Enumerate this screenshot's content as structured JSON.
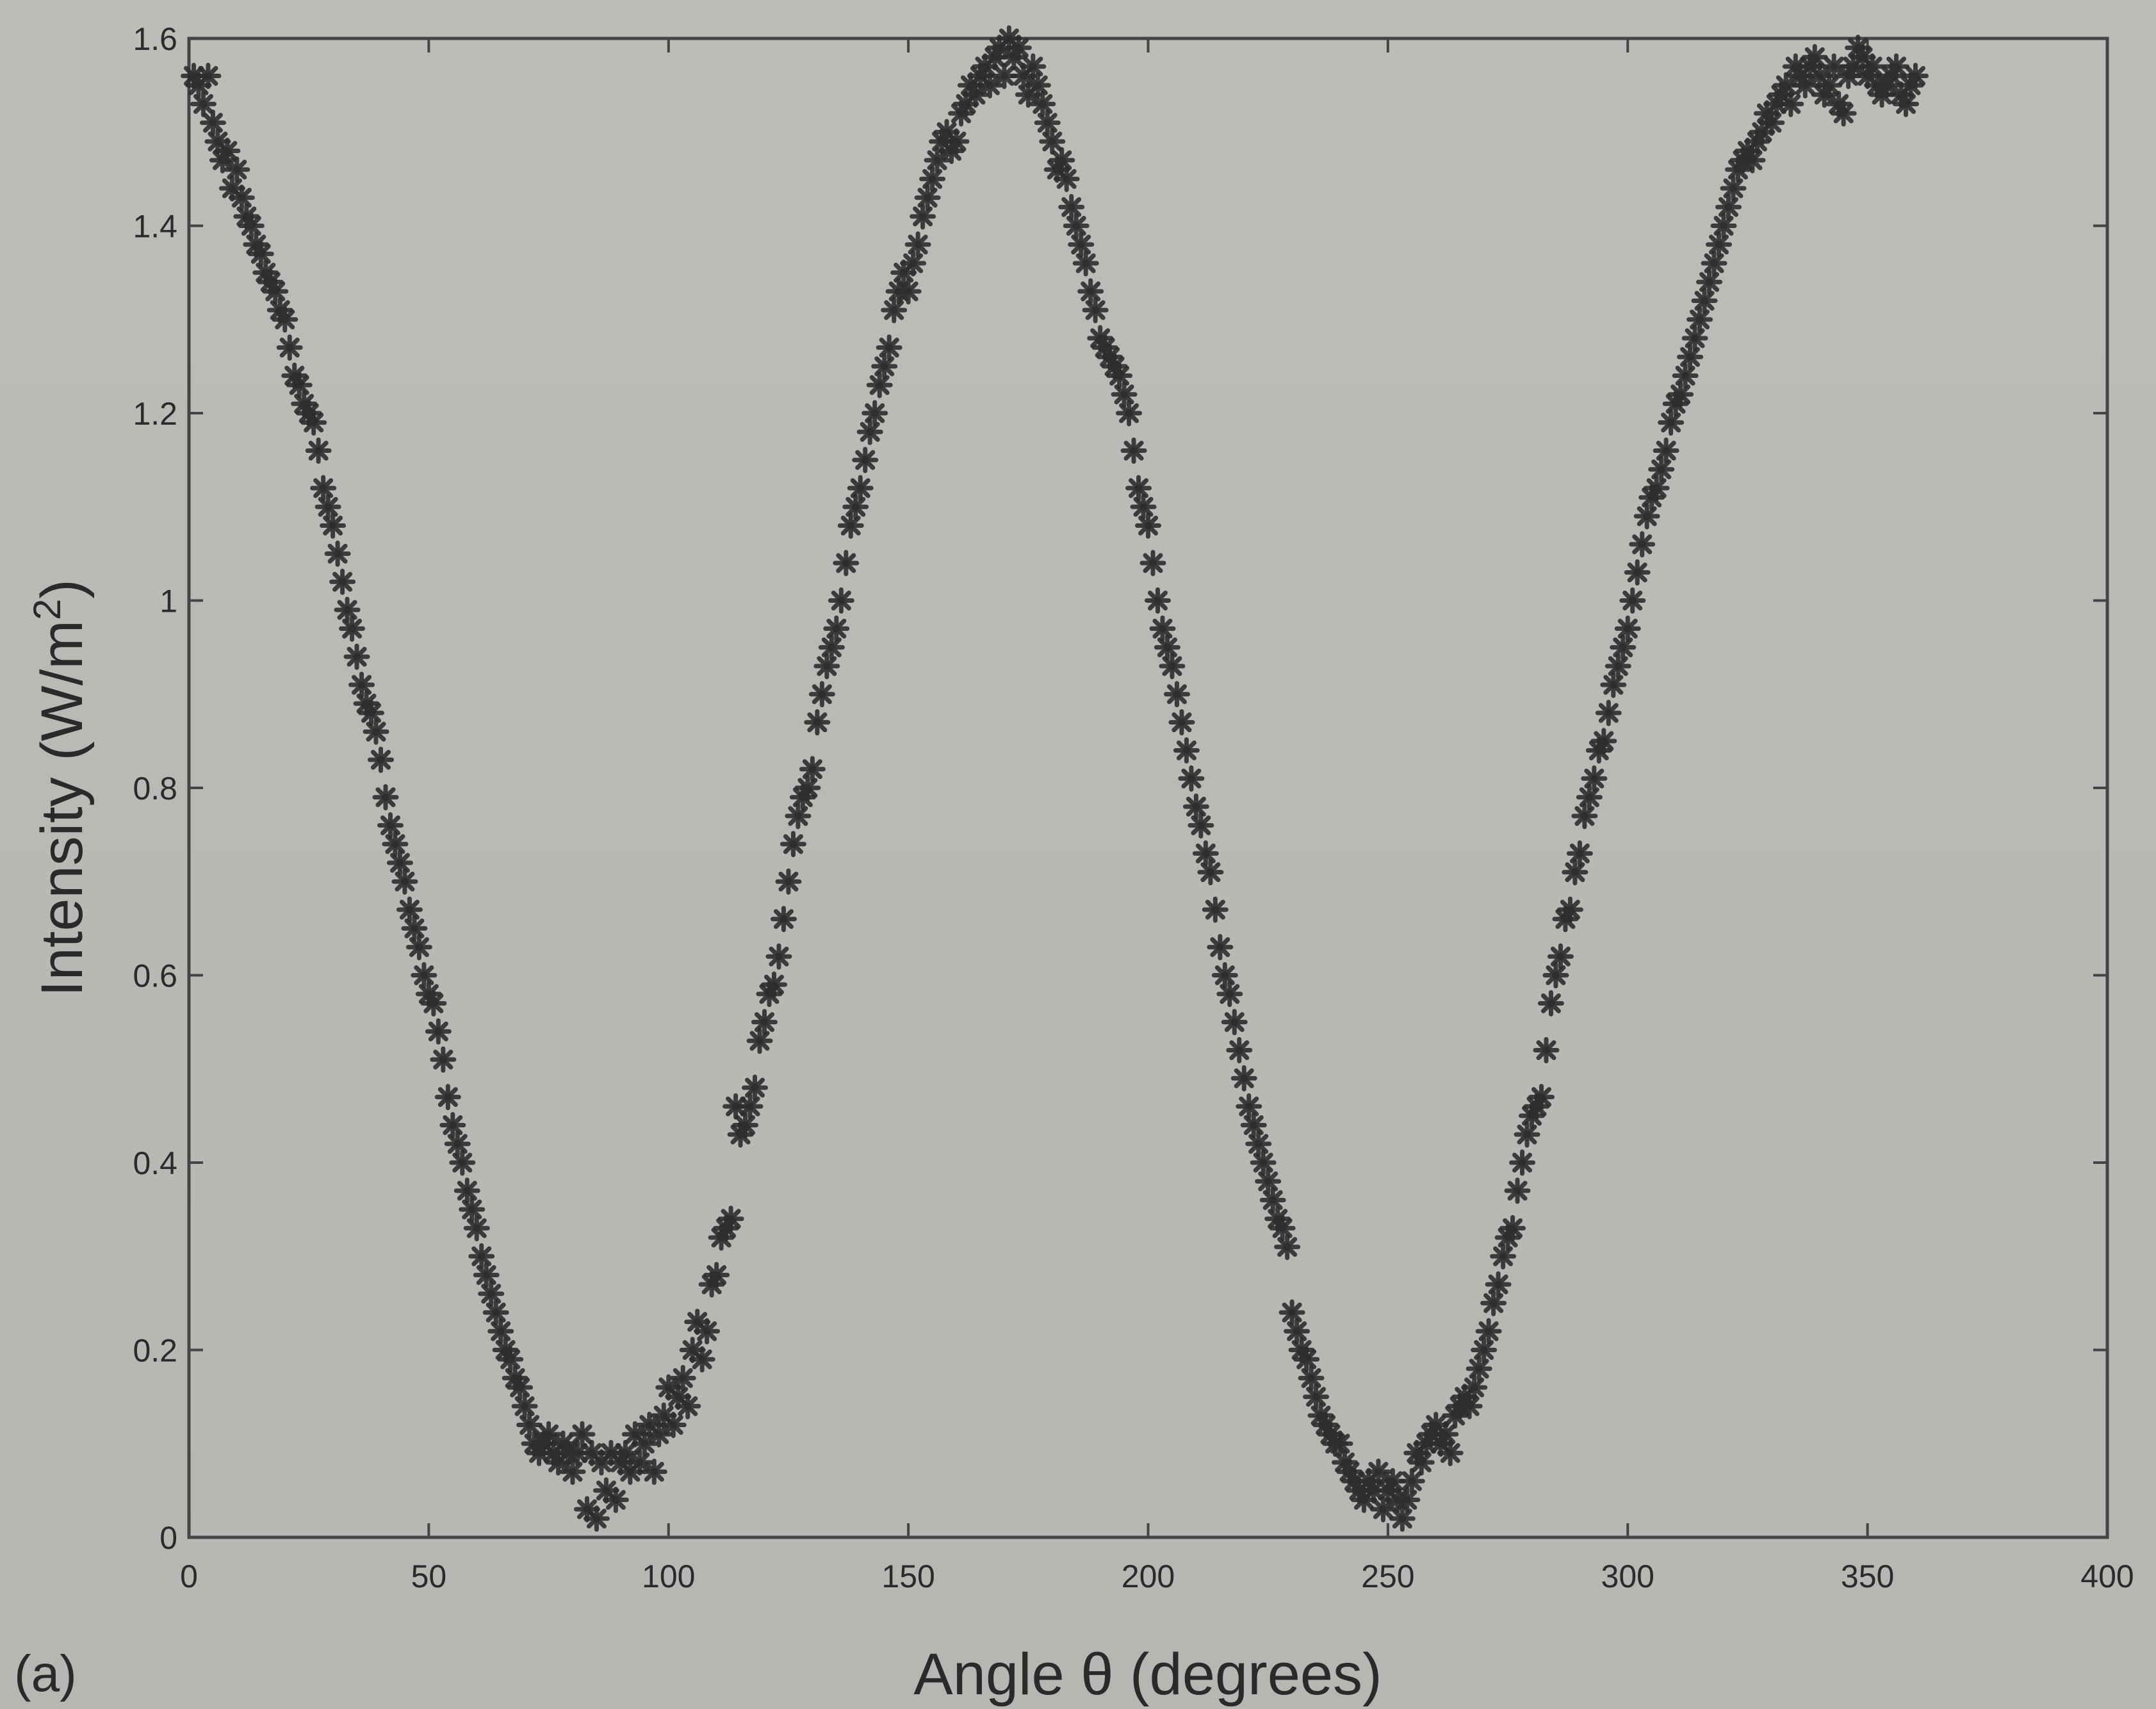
{
  "chart_data": {
    "type": "scatter",
    "xlabel": "Angle θ (degrees)",
    "ylabel_main": "Intensity (W/m",
    "ylabel_sup": "2",
    "ylabel_close": ")",
    "panel_label": "(a)",
    "xlim": [
      0,
      400
    ],
    "ylim": [
      0,
      1.6
    ],
    "xticks": [
      0,
      50,
      100,
      150,
      200,
      250,
      300,
      350,
      400
    ],
    "xtick_labels": [
      "0",
      "50",
      "100",
      "150",
      "200",
      "250",
      "300",
      "350",
      "400"
    ],
    "yticks": [
      0,
      0.2,
      0.4,
      0.6,
      0.8,
      1.0,
      1.2,
      1.4,
      1.6
    ],
    "ytick_labels": [
      "0",
      "0.2",
      "0.4",
      "0.6",
      "0.8",
      "1",
      "1.2",
      "1.4",
      "1.6"
    ],
    "grid": false,
    "marker": "asterisk",
    "marker_color": "#2e2e2e",
    "axes_color": "#444444",
    "points": [
      [
        1,
        1.56
      ],
      [
        2,
        1.55
      ],
      [
        3,
        1.53
      ],
      [
        4,
        1.56
      ],
      [
        5,
        1.51
      ],
      [
        6,
        1.49
      ],
      [
        7,
        1.47
      ],
      [
        8,
        1.48
      ],
      [
        9,
        1.44
      ],
      [
        10,
        1.46
      ],
      [
        11,
        1.43
      ],
      [
        12,
        1.41
      ],
      [
        13,
        1.4
      ],
      [
        14,
        1.38
      ],
      [
        15,
        1.37
      ],
      [
        16,
        1.35
      ],
      [
        17,
        1.34
      ],
      [
        18,
        1.33
      ],
      [
        19,
        1.31
      ],
      [
        20,
        1.3
      ],
      [
        21,
        1.27
      ],
      [
        22,
        1.24
      ],
      [
        23,
        1.23
      ],
      [
        24,
        1.21
      ],
      [
        25,
        1.2
      ],
      [
        26,
        1.19
      ],
      [
        27,
        1.16
      ],
      [
        28,
        1.12
      ],
      [
        29,
        1.1
      ],
      [
        30,
        1.08
      ],
      [
        31,
        1.05
      ],
      [
        32,
        1.02
      ],
      [
        33,
        0.99
      ],
      [
        34,
        0.97
      ],
      [
        35,
        0.94
      ],
      [
        36,
        0.91
      ],
      [
        37,
        0.89
      ],
      [
        38,
        0.88
      ],
      [
        39,
        0.86
      ],
      [
        40,
        0.83
      ],
      [
        41,
        0.79
      ],
      [
        42,
        0.76
      ],
      [
        43,
        0.74
      ],
      [
        44,
        0.72
      ],
      [
        45,
        0.7
      ],
      [
        46,
        0.67
      ],
      [
        47,
        0.65
      ],
      [
        48,
        0.63
      ],
      [
        49,
        0.6
      ],
      [
        50,
        0.58
      ],
      [
        51,
        0.57
      ],
      [
        52,
        0.54
      ],
      [
        53,
        0.51
      ],
      [
        54,
        0.47
      ],
      [
        55,
        0.44
      ],
      [
        56,
        0.42
      ],
      [
        57,
        0.4
      ],
      [
        58,
        0.37
      ],
      [
        59,
        0.35
      ],
      [
        60,
        0.33
      ],
      [
        61,
        0.3
      ],
      [
        62,
        0.28
      ],
      [
        63,
        0.26
      ],
      [
        64,
        0.24
      ],
      [
        65,
        0.22
      ],
      [
        66,
        0.2
      ],
      [
        67,
        0.19
      ],
      [
        68,
        0.17
      ],
      [
        69,
        0.16
      ],
      [
        70,
        0.14
      ],
      [
        71,
        0.12
      ],
      [
        72,
        0.1
      ],
      [
        73,
        0.09
      ],
      [
        74,
        0.1
      ],
      [
        75,
        0.11
      ],
      [
        76,
        0.09
      ],
      [
        77,
        0.08
      ],
      [
        78,
        0.1
      ],
      [
        79,
        0.09
      ],
      [
        80,
        0.07
      ],
      [
        81,
        0.09
      ],
      [
        82,
        0.11
      ],
      [
        83,
        0.03
      ],
      [
        84,
        0.09
      ],
      [
        85,
        0.02
      ],
      [
        86,
        0.08
      ],
      [
        87,
        0.05
      ],
      [
        88,
        0.09
      ],
      [
        89,
        0.04
      ],
      [
        90,
        0.08
      ],
      [
        91,
        0.09
      ],
      [
        92,
        0.07
      ],
      [
        93,
        0.11
      ],
      [
        94,
        0.08
      ],
      [
        95,
        0.1
      ],
      [
        96,
        0.12
      ],
      [
        97,
        0.07
      ],
      [
        98,
        0.11
      ],
      [
        99,
        0.13
      ],
      [
        100,
        0.16
      ],
      [
        101,
        0.12
      ],
      [
        102,
        0.15
      ],
      [
        103,
        0.17
      ],
      [
        104,
        0.14
      ],
      [
        105,
        0.2
      ],
      [
        106,
        0.23
      ],
      [
        107,
        0.19
      ],
      [
        108,
        0.22
      ],
      [
        109,
        0.27
      ],
      [
        110,
        0.28
      ],
      [
        111,
        0.32
      ],
      [
        112,
        0.33
      ],
      [
        113,
        0.34
      ],
      [
        114,
        0.46
      ],
      [
        115,
        0.43
      ],
      [
        116,
        0.44
      ],
      [
        117,
        0.46
      ],
      [
        118,
        0.48
      ],
      [
        119,
        0.53
      ],
      [
        120,
        0.55
      ],
      [
        121,
        0.58
      ],
      [
        122,
        0.59
      ],
      [
        123,
        0.62
      ],
      [
        124,
        0.66
      ],
      [
        125,
        0.7
      ],
      [
        126,
        0.74
      ],
      [
        127,
        0.77
      ],
      [
        128,
        0.79
      ],
      [
        129,
        0.8
      ],
      [
        130,
        0.82
      ],
      [
        131,
        0.87
      ],
      [
        132,
        0.9
      ],
      [
        133,
        0.93
      ],
      [
        134,
        0.95
      ],
      [
        135,
        0.97
      ],
      [
        136,
        1.0
      ],
      [
        137,
        1.04
      ],
      [
        138,
        1.08
      ],
      [
        139,
        1.1
      ],
      [
        140,
        1.12
      ],
      [
        141,
        1.15
      ],
      [
        142,
        1.18
      ],
      [
        143,
        1.2
      ],
      [
        144,
        1.23
      ],
      [
        145,
        1.25
      ],
      [
        146,
        1.27
      ],
      [
        147,
        1.31
      ],
      [
        148,
        1.33
      ],
      [
        149,
        1.35
      ],
      [
        150,
        1.33
      ],
      [
        151,
        1.36
      ],
      [
        152,
        1.38
      ],
      [
        153,
        1.41
      ],
      [
        154,
        1.43
      ],
      [
        155,
        1.45
      ],
      [
        156,
        1.47
      ],
      [
        157,
        1.49
      ],
      [
        158,
        1.5
      ],
      [
        159,
        1.48
      ],
      [
        160,
        1.49
      ],
      [
        161,
        1.52
      ],
      [
        162,
        1.53
      ],
      [
        163,
        1.55
      ],
      [
        164,
        1.54
      ],
      [
        165,
        1.56
      ],
      [
        166,
        1.57
      ],
      [
        167,
        1.55
      ],
      [
        168,
        1.58
      ],
      [
        169,
        1.59
      ],
      [
        170,
        1.56
      ],
      [
        171,
        1.6
      ],
      [
        172,
        1.58
      ],
      [
        173,
        1.59
      ],
      [
        174,
        1.56
      ],
      [
        175,
        1.54
      ],
      [
        176,
        1.57
      ],
      [
        177,
        1.55
      ],
      [
        178,
        1.53
      ],
      [
        179,
        1.51
      ],
      [
        180,
        1.49
      ],
      [
        181,
        1.46
      ],
      [
        182,
        1.47
      ],
      [
        183,
        1.45
      ],
      [
        184,
        1.42
      ],
      [
        185,
        1.4
      ],
      [
        186,
        1.38
      ],
      [
        187,
        1.36
      ],
      [
        188,
        1.33
      ],
      [
        189,
        1.31
      ],
      [
        190,
        1.28
      ],
      [
        191,
        1.27
      ],
      [
        192,
        1.26
      ],
      [
        193,
        1.25
      ],
      [
        194,
        1.24
      ],
      [
        195,
        1.22
      ],
      [
        196,
        1.2
      ],
      [
        197,
        1.16
      ],
      [
        198,
        1.12
      ],
      [
        199,
        1.1
      ],
      [
        200,
        1.08
      ],
      [
        201,
        1.04
      ],
      [
        202,
        1.0
      ],
      [
        203,
        0.97
      ],
      [
        204,
        0.95
      ],
      [
        205,
        0.93
      ],
      [
        206,
        0.9
      ],
      [
        207,
        0.87
      ],
      [
        208,
        0.84
      ],
      [
        209,
        0.81
      ],
      [
        210,
        0.78
      ],
      [
        211,
        0.76
      ],
      [
        212,
        0.73
      ],
      [
        213,
        0.71
      ],
      [
        214,
        0.67
      ],
      [
        215,
        0.63
      ],
      [
        216,
        0.6
      ],
      [
        217,
        0.58
      ],
      [
        218,
        0.55
      ],
      [
        219,
        0.52
      ],
      [
        220,
        0.49
      ],
      [
        221,
        0.46
      ],
      [
        222,
        0.44
      ],
      [
        223,
        0.42
      ],
      [
        224,
        0.4
      ],
      [
        225,
        0.38
      ],
      [
        226,
        0.36
      ],
      [
        227,
        0.34
      ],
      [
        228,
        0.33
      ],
      [
        229,
        0.31
      ],
      [
        230,
        0.24
      ],
      [
        231,
        0.22
      ],
      [
        232,
        0.2
      ],
      [
        233,
        0.19
      ],
      [
        234,
        0.17
      ],
      [
        235,
        0.15
      ],
      [
        236,
        0.13
      ],
      [
        237,
        0.12
      ],
      [
        238,
        0.11
      ],
      [
        239,
        0.1
      ],
      [
        240,
        0.1
      ],
      [
        241,
        0.08
      ],
      [
        242,
        0.07
      ],
      [
        243,
        0.06
      ],
      [
        244,
        0.05
      ],
      [
        245,
        0.04
      ],
      [
        246,
        0.06
      ],
      [
        247,
        0.05
      ],
      [
        248,
        0.07
      ],
      [
        249,
        0.03
      ],
      [
        250,
        0.05
      ],
      [
        251,
        0.06
      ],
      [
        252,
        0.04
      ],
      [
        253,
        0.02
      ],
      [
        254,
        0.04
      ],
      [
        255,
        0.06
      ],
      [
        256,
        0.09
      ],
      [
        257,
        0.08
      ],
      [
        258,
        0.1
      ],
      [
        259,
        0.11
      ],
      [
        260,
        0.12
      ],
      [
        261,
        0.1
      ],
      [
        262,
        0.11
      ],
      [
        263,
        0.09
      ],
      [
        264,
        0.13
      ],
      [
        265,
        0.14
      ],
      [
        266,
        0.15
      ],
      [
        267,
        0.14
      ],
      [
        268,
        0.16
      ],
      [
        269,
        0.18
      ],
      [
        270,
        0.2
      ],
      [
        271,
        0.22
      ],
      [
        272,
        0.25
      ],
      [
        273,
        0.27
      ],
      [
        274,
        0.3
      ],
      [
        275,
        0.32
      ],
      [
        276,
        0.33
      ],
      [
        277,
        0.37
      ],
      [
        278,
        0.4
      ],
      [
        279,
        0.43
      ],
      [
        280,
        0.45
      ],
      [
        281,
        0.46
      ],
      [
        282,
        0.47
      ],
      [
        283,
        0.52
      ],
      [
        284,
        0.57
      ],
      [
        285,
        0.6
      ],
      [
        286,
        0.62
      ],
      [
        287,
        0.66
      ],
      [
        288,
        0.67
      ],
      [
        289,
        0.71
      ],
      [
        290,
        0.73
      ],
      [
        291,
        0.77
      ],
      [
        292,
        0.79
      ],
      [
        293,
        0.81
      ],
      [
        294,
        0.84
      ],
      [
        295,
        0.85
      ],
      [
        296,
        0.88
      ],
      [
        297,
        0.91
      ],
      [
        298,
        0.93
      ],
      [
        299,
        0.95
      ],
      [
        300,
        0.97
      ],
      [
        301,
        1.0
      ],
      [
        302,
        1.03
      ],
      [
        303,
        1.06
      ],
      [
        304,
        1.09
      ],
      [
        305,
        1.11
      ],
      [
        306,
        1.12
      ],
      [
        307,
        1.14
      ],
      [
        308,
        1.16
      ],
      [
        309,
        1.19
      ],
      [
        310,
        1.21
      ],
      [
        311,
        1.22
      ],
      [
        312,
        1.24
      ],
      [
        313,
        1.26
      ],
      [
        314,
        1.28
      ],
      [
        315,
        1.3
      ],
      [
        316,
        1.32
      ],
      [
        317,
        1.34
      ],
      [
        318,
        1.36
      ],
      [
        319,
        1.38
      ],
      [
        320,
        1.4
      ],
      [
        321,
        1.42
      ],
      [
        322,
        1.44
      ],
      [
        323,
        1.46
      ],
      [
        324,
        1.47
      ],
      [
        325,
        1.48
      ],
      [
        326,
        1.47
      ],
      [
        327,
        1.49
      ],
      [
        328,
        1.5
      ],
      [
        329,
        1.52
      ],
      [
        330,
        1.51
      ],
      [
        331,
        1.53
      ],
      [
        332,
        1.54
      ],
      [
        333,
        1.55
      ],
      [
        334,
        1.53
      ],
      [
        335,
        1.57
      ],
      [
        336,
        1.56
      ],
      [
        337,
        1.55
      ],
      [
        338,
        1.57
      ],
      [
        339,
        1.58
      ],
      [
        340,
        1.56
      ],
      [
        341,
        1.54
      ],
      [
        342,
        1.55
      ],
      [
        343,
        1.57
      ],
      [
        344,
        1.53
      ],
      [
        345,
        1.52
      ],
      [
        346,
        1.56
      ],
      [
        347,
        1.57
      ],
      [
        348,
        1.59
      ],
      [
        349,
        1.58
      ],
      [
        350,
        1.56
      ],
      [
        351,
        1.57
      ],
      [
        352,
        1.55
      ],
      [
        353,
        1.54
      ],
      [
        354,
        1.55
      ],
      [
        355,
        1.56
      ],
      [
        356,
        1.57
      ],
      [
        357,
        1.54
      ],
      [
        358,
        1.53
      ],
      [
        359,
        1.55
      ],
      [
        360,
        1.56
      ]
    ]
  }
}
